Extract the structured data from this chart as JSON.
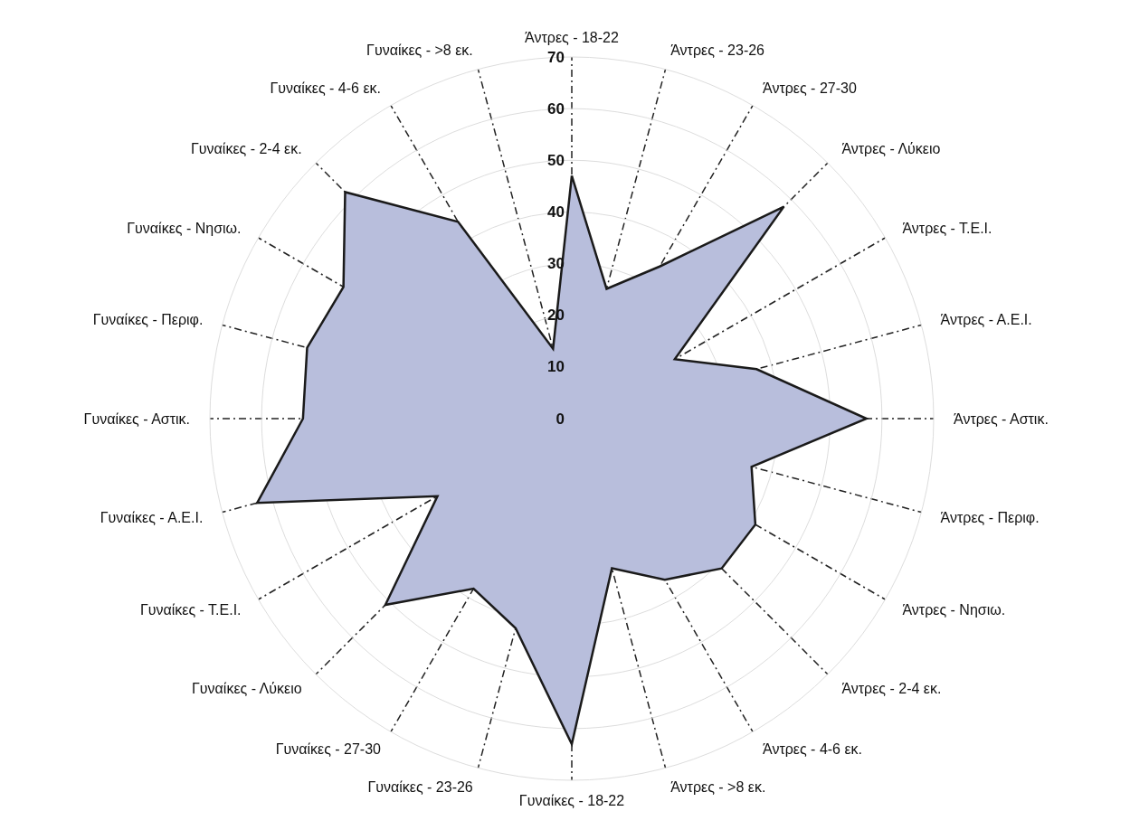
{
  "chart_data": {
    "type": "radar",
    "categories": [
      "Άντρες - 18-22",
      "Άντρες - 23-26",
      "Άντρες - 27-30",
      "Άντρες - Λύκειο",
      "Άντρες - Τ.Ε.Ι.",
      "Άντρες - Α.Ε.Ι.",
      "Άντρες - Αστικ.",
      "Άντρες - Περιφ.",
      "Άντρες - Νησιω.",
      "Άντρες - 2-4 εκ.",
      "Άντρες - 4-6 εκ.",
      "Άντρες - >8 εκ.",
      "Γυναίκες - 18-22",
      "Γυναίκες - 23-26",
      "Γυναίκες - 27-30",
      "Γυναίκες - Λύκειο",
      "Γυναίκες - Τ.Ε.Ι.",
      "Γυναίκες - Α.Ε.Ι.",
      "Γυναίκες - Αστικ.",
      "Γυναίκες - Περιφ.",
      "Γυναίκες - Νησιω.",
      "Γυναίκες - 2-4 εκ.",
      "Γυναίκες - 4-6 εκ.",
      "Γυναίκες - >8 εκ."
    ],
    "series": [
      {
        "color": "#b8bedc",
        "values": [
          47,
          26,
          34,
          58,
          23,
          37,
          57,
          36,
          41,
          41,
          36,
          30,
          63,
          42,
          38,
          51,
          30,
          63,
          52,
          53,
          51,
          62,
          44,
          14
        ]
      }
    ],
    "ylim": [
      0,
      70
    ],
    "yticks": [
      0,
      10,
      20,
      30,
      40,
      50,
      60,
      70
    ],
    "grid": true,
    "marker": "none"
  }
}
